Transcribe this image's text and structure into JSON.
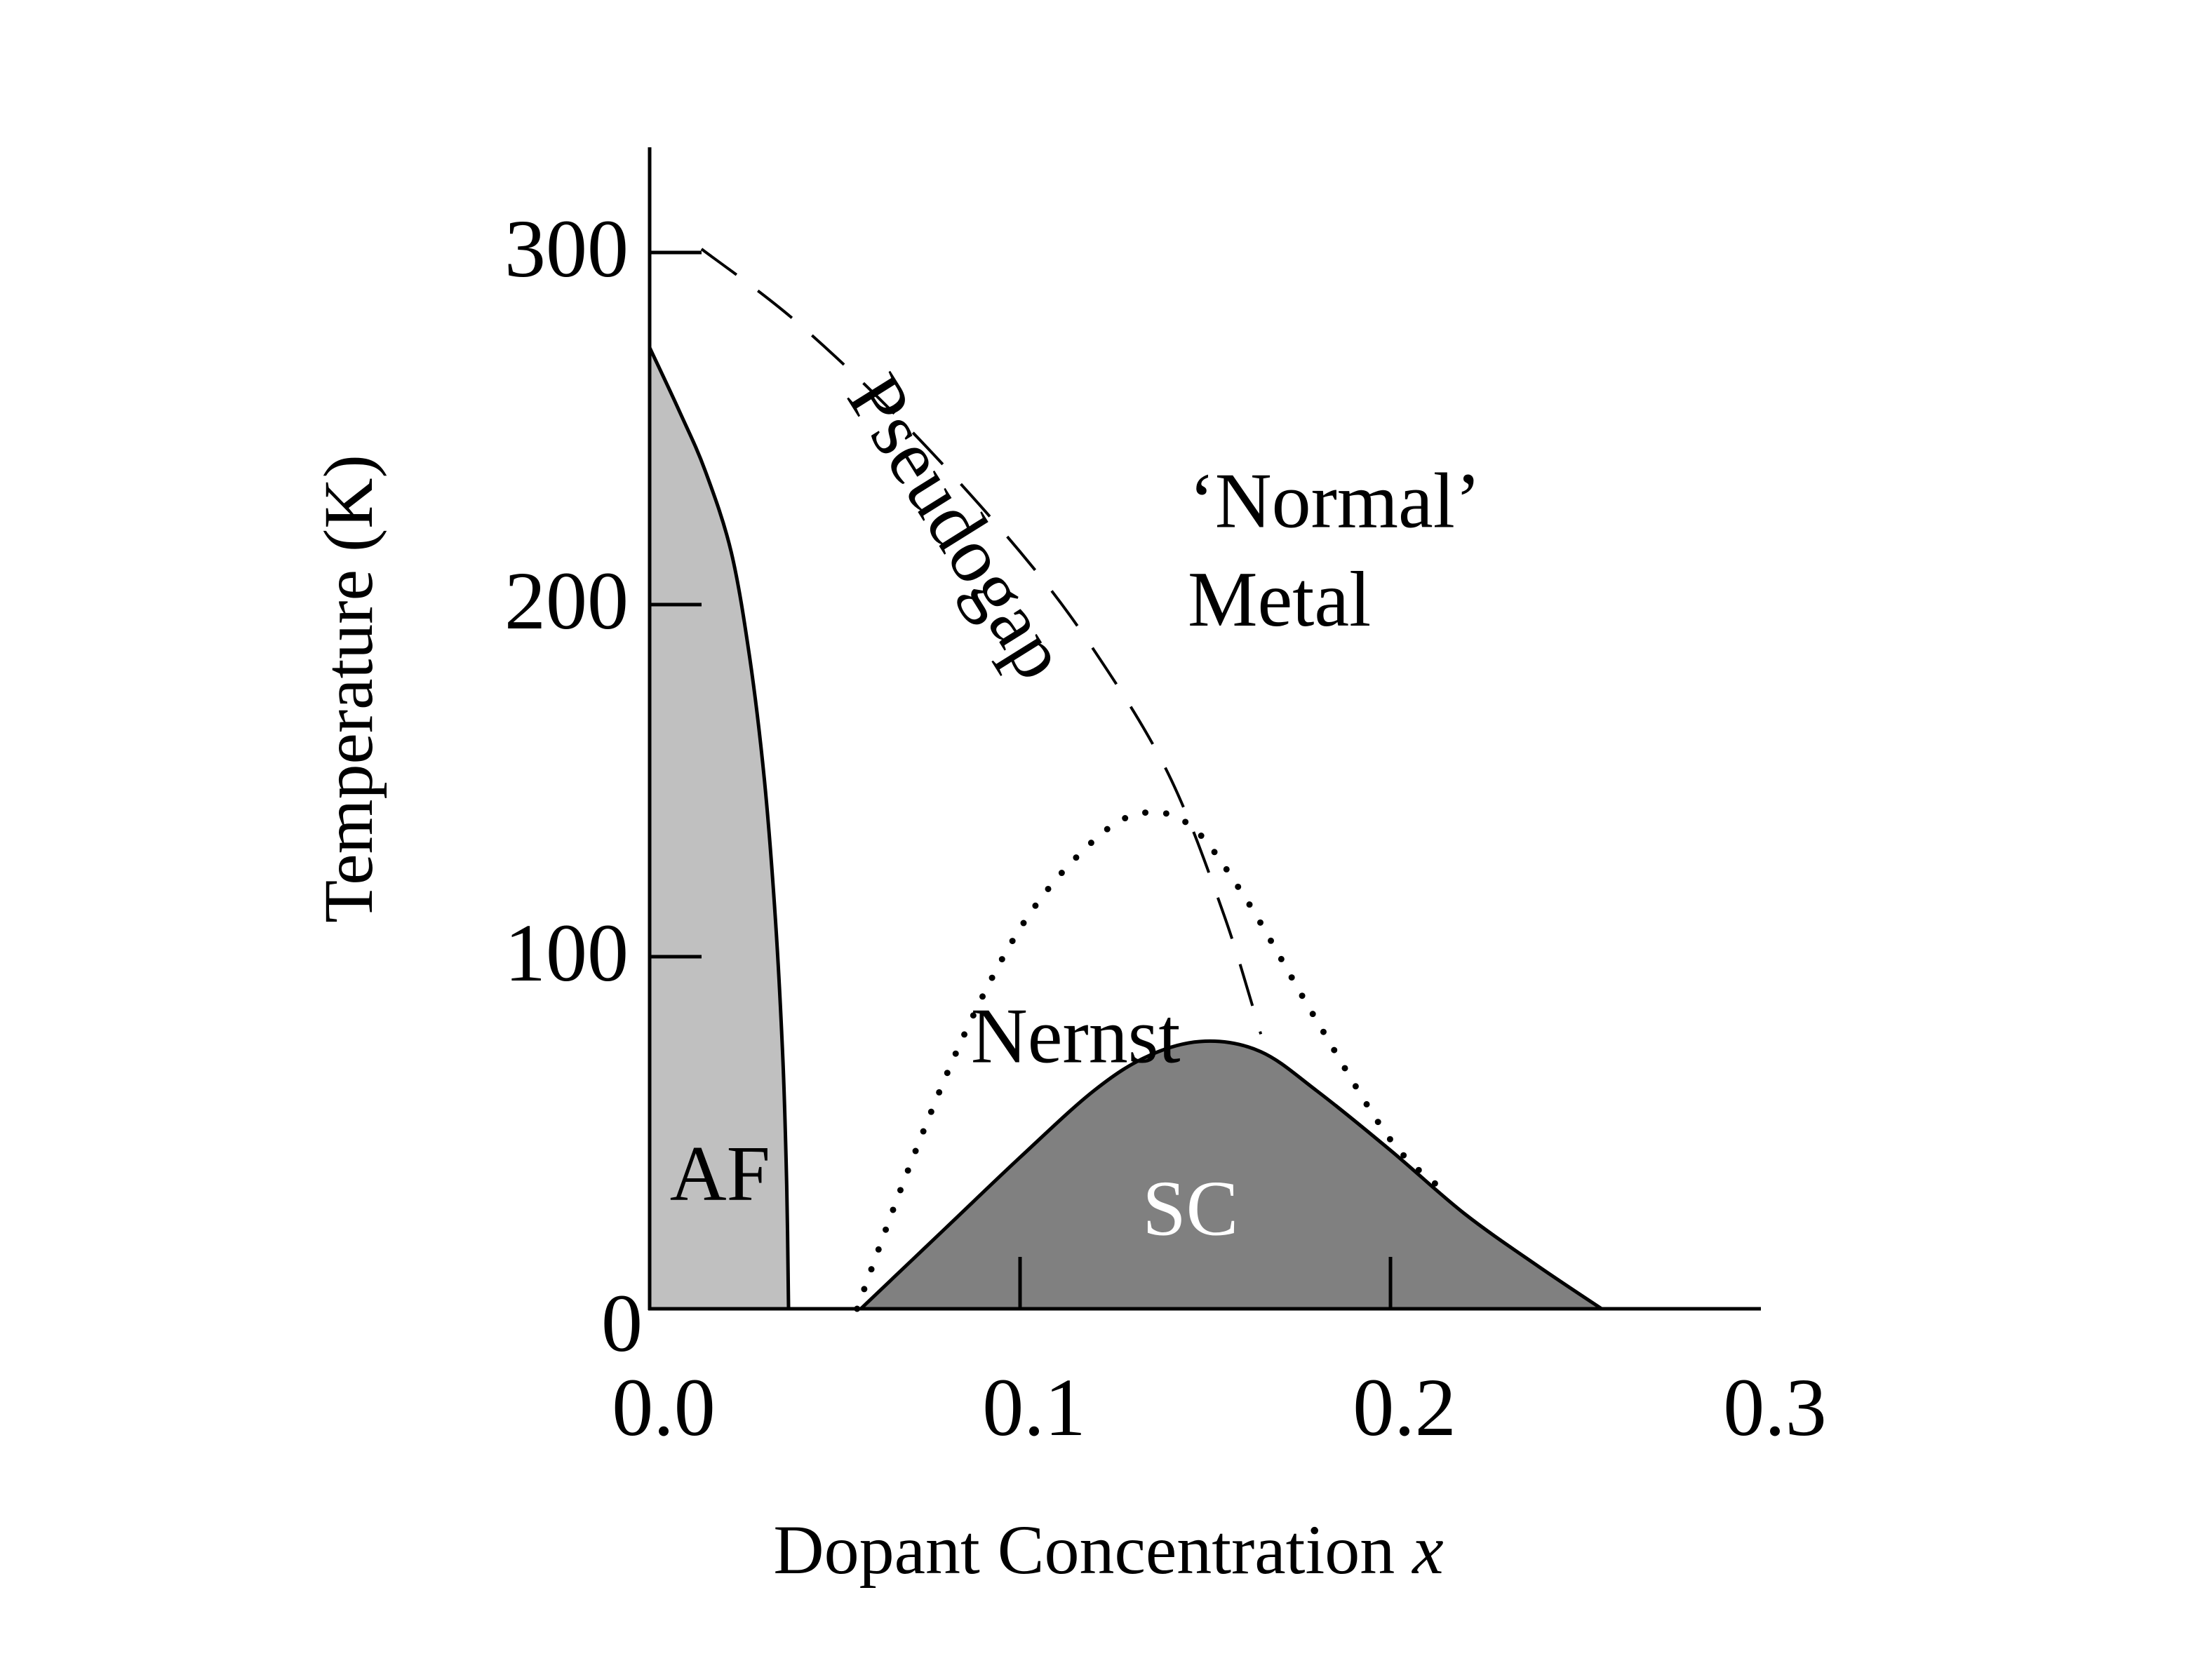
{
  "chart_data": {
    "type": "area",
    "xlabel_main": "Dopant Concentration",
    "xlabel_var": "x",
    "ylabel": "Temperature (K)",
    "xlim": [
      0.0,
      0.3
    ],
    "ylim": [
      0,
      330
    ],
    "x_ticks": [
      0.0,
      0.1,
      0.2,
      0.3
    ],
    "x_tick_labels": [
      "0.0",
      "0.1",
      "0.2",
      "0.3"
    ],
    "y_ticks": [
      0,
      100,
      200,
      300
    ],
    "y_tick_labels": [
      "0",
      "100",
      "200",
      "300"
    ],
    "grid": false,
    "legend": "none",
    "series": [
      {
        "name": "AF",
        "kind": "filled-region",
        "fill": "#c0c0c0",
        "points": [
          [
            0.0,
            273
          ],
          [
            0.008,
            255
          ],
          [
            0.015,
            238
          ],
          [
            0.022,
            215
          ],
          [
            0.027,
            185
          ],
          [
            0.031,
            150
          ],
          [
            0.034,
            110
          ],
          [
            0.036,
            70
          ],
          [
            0.037,
            35
          ],
          [
            0.0375,
            0
          ]
        ]
      },
      {
        "name": "SC",
        "kind": "filled-region",
        "fill": "#808080",
        "points": [
          [
            0.057,
            0
          ],
          [
            0.08,
            23
          ],
          [
            0.1,
            43
          ],
          [
            0.12,
            62
          ],
          [
            0.135,
            72
          ],
          [
            0.15,
            76
          ],
          [
            0.165,
            73
          ],
          [
            0.18,
            62
          ],
          [
            0.2,
            45
          ],
          [
            0.22,
            27
          ],
          [
            0.24,
            12
          ],
          [
            0.257,
            0
          ]
        ]
      },
      {
        "name": "Pseudogap",
        "kind": "dashed-line",
        "points": [
          [
            0.014,
            301
          ],
          [
            0.04,
            280
          ],
          [
            0.07,
            250
          ],
          [
            0.1,
            215
          ],
          [
            0.12,
            187
          ],
          [
            0.14,
            152
          ],
          [
            0.155,
            112
          ],
          [
            0.165,
            78
          ]
        ]
      },
      {
        "name": "Nernst",
        "kind": "dotted-line",
        "points": [
          [
            0.056,
            0
          ],
          [
            0.07,
            40
          ],
          [
            0.085,
            78
          ],
          [
            0.1,
            108
          ],
          [
            0.115,
            128
          ],
          [
            0.13,
            140
          ],
          [
            0.145,
            138
          ],
          [
            0.16,
            118
          ],
          [
            0.18,
            82
          ],
          [
            0.2,
            48
          ],
          [
            0.215,
            33
          ]
        ]
      }
    ],
    "annotations": [
      {
        "text": "Pseudogap",
        "x": 0.083,
        "y": 222
      },
      {
        "text": "‘Normal’",
        "x": 0.185,
        "y": 222
      },
      {
        "text": "Metal",
        "x": 0.17,
        "y": 194
      },
      {
        "text": "Nernst",
        "x": 0.115,
        "y": 70
      },
      {
        "text": "AF",
        "x": 0.019,
        "y": 31
      },
      {
        "text": "SC",
        "x": 0.146,
        "y": 21
      }
    ]
  }
}
